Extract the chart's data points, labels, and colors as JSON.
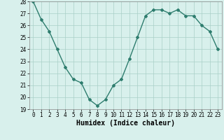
{
  "x": [
    0,
    1,
    2,
    3,
    4,
    5,
    6,
    7,
    8,
    9,
    10,
    11,
    12,
    13,
    14,
    15,
    16,
    17,
    18,
    19,
    20,
    21,
    22,
    23
  ],
  "y": [
    28.0,
    26.5,
    25.5,
    24.0,
    22.5,
    21.5,
    21.2,
    19.8,
    19.3,
    19.8,
    21.0,
    21.5,
    23.2,
    25.0,
    26.8,
    27.3,
    27.3,
    27.0,
    27.3,
    26.8,
    26.8,
    26.0,
    25.5,
    24.0
  ],
  "line_color": "#2e7d6e",
  "marker": "D",
  "marker_size": 2,
  "bg_color": "#d8f0ec",
  "grid_color": "#aacfc8",
  "xlabel": "Humidex (Indice chaleur)",
  "ylim": [
    19,
    28
  ],
  "xlim_min": -0.5,
  "xlim_max": 23.5,
  "yticks": [
    19,
    20,
    21,
    22,
    23,
    24,
    25,
    26,
    27,
    28
  ],
  "xticks": [
    0,
    1,
    2,
    3,
    4,
    5,
    6,
    7,
    8,
    9,
    10,
    11,
    12,
    13,
    14,
    15,
    16,
    17,
    18,
    19,
    20,
    21,
    22,
    23
  ],
  "tick_fontsize": 5.5,
  "xlabel_fontsize": 7,
  "line_width": 1.0
}
